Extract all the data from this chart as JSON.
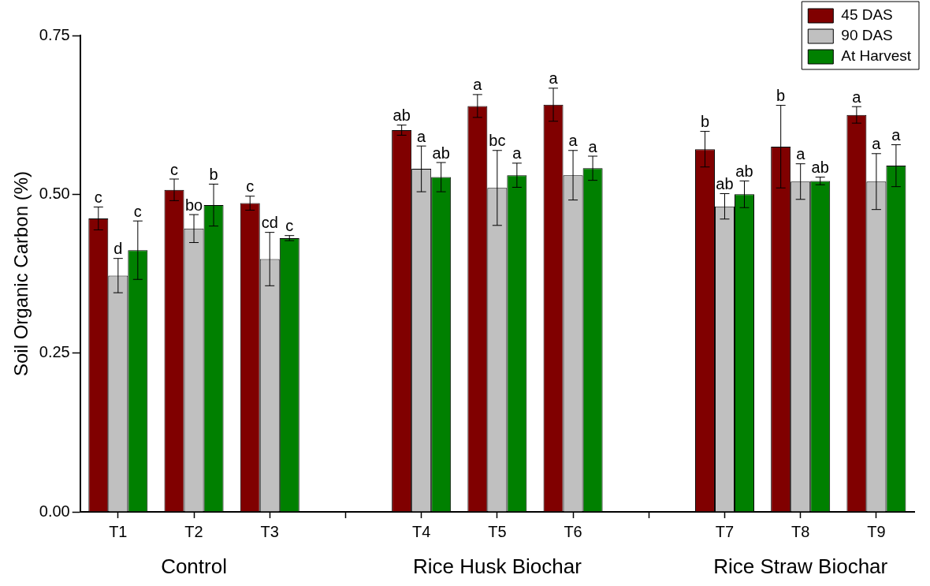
{
  "chart_data": {
    "type": "bar",
    "ylabel": "Soil Organic Carbon (%)",
    "categories": [
      "T1",
      "T2",
      "T3",
      null,
      "T4",
      "T5",
      "T6",
      null,
      "T7",
      "T8",
      "T9"
    ],
    "series": [
      {
        "name": "45 DAS",
        "color": "#800000",
        "values": [
          0.462,
          0.507,
          0.486,
          null,
          0.601,
          0.639,
          0.641,
          null,
          0.571,
          0.575,
          0.625
        ],
        "errors": [
          0.018,
          0.017,
          0.011,
          null,
          0.008,
          0.018,
          0.026,
          null,
          0.028,
          0.065,
          0.013
        ],
        "value_labels": [
          "c",
          "c",
          "c",
          null,
          "ab",
          "a",
          "a",
          null,
          "b",
          "b",
          "a"
        ]
      },
      {
        "name": "90 DAS",
        "color": "#c0c0c0",
        "values": [
          0.372,
          0.446,
          0.398,
          null,
          0.54,
          0.51,
          0.53,
          null,
          0.481,
          0.52,
          0.52
        ],
        "errors": [
          0.027,
          0.022,
          0.042,
          null,
          0.036,
          0.059,
          0.039,
          null,
          0.02,
          0.028,
          0.044
        ],
        "value_labels": [
          "d",
          "bo",
          "cd",
          null,
          "a",
          "bc",
          "a",
          null,
          "ab",
          "a",
          "a"
        ]
      },
      {
        "name": "At Harvest",
        "color": "#008000",
        "values": [
          0.412,
          0.483,
          0.431,
          null,
          0.527,
          0.53,
          0.541,
          null,
          0.5,
          0.521,
          0.545
        ],
        "errors": [
          0.046,
          0.033,
          0.004,
          null,
          0.023,
          0.019,
          0.019,
          null,
          0.021,
          0.006,
          0.033
        ],
        "value_labels": [
          "c",
          "b",
          "c",
          null,
          "ab",
          "a",
          "a",
          null,
          "ab",
          "ab",
          "a"
        ]
      }
    ],
    "ylim": [
      0,
      0.75
    ],
    "yticks": [
      {
        "value": 0,
        "label": "0.00"
      },
      {
        "value": 0.25,
        "label": "0.25"
      },
      {
        "value": 0.5,
        "label": "0.50"
      },
      {
        "value": 0.75,
        "label": "0.75"
      }
    ],
    "grid": false,
    "legend": "top right",
    "annotations": [
      "Control",
      "Rice Husk Biochar",
      "Rice Straw Biochar"
    ]
  }
}
